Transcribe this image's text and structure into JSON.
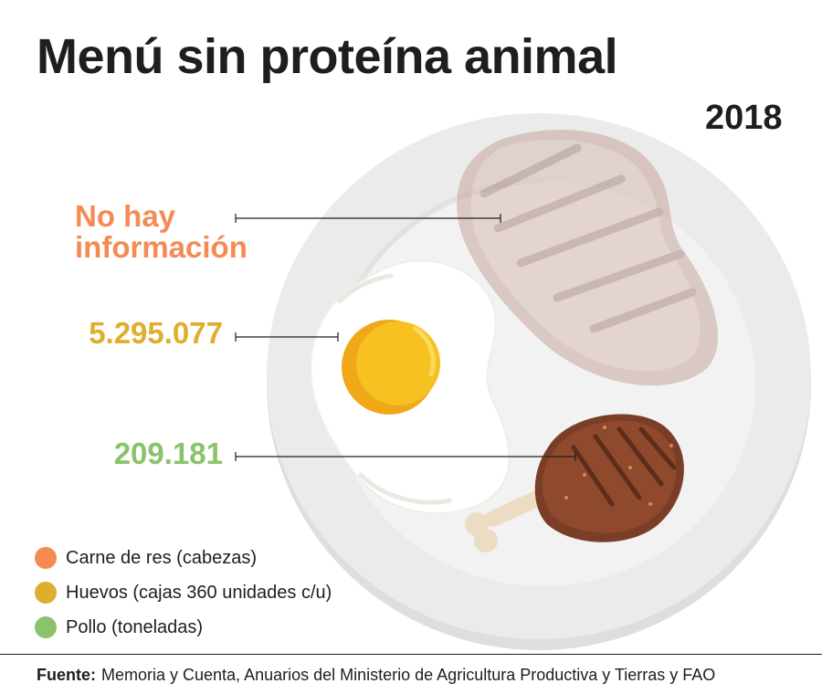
{
  "title": "Menú sin proteína animal",
  "year": "2018",
  "stats": {
    "beef": "No hay información",
    "eggs": "5.295.077",
    "chicken": "209.181"
  },
  "legend": [
    {
      "label": "Carne de res (cabezas)",
      "color": "#f58a53"
    },
    {
      "label": "Huevos (cajas 360 unidades c/u)",
      "color": "#e0ae2f"
    },
    {
      "label": "Pollo (toneladas)",
      "color": "#8ac36a"
    }
  ],
  "source": {
    "label": "Fuente:",
    "text": "Memoria y Cuenta, Anuarios del Ministerio de Agricultura Productiva y Tierras y FAO"
  },
  "colors": {
    "beef": "#f58a53",
    "eggs": "#e0ae2f",
    "chicken": "#8ac36a",
    "plate": "#ebebeb",
    "plate_inner": "#f2f2f2"
  },
  "icons": [
    "plate-icon",
    "steak-icon",
    "fried-egg-icon",
    "chicken-leg-icon"
  ]
}
